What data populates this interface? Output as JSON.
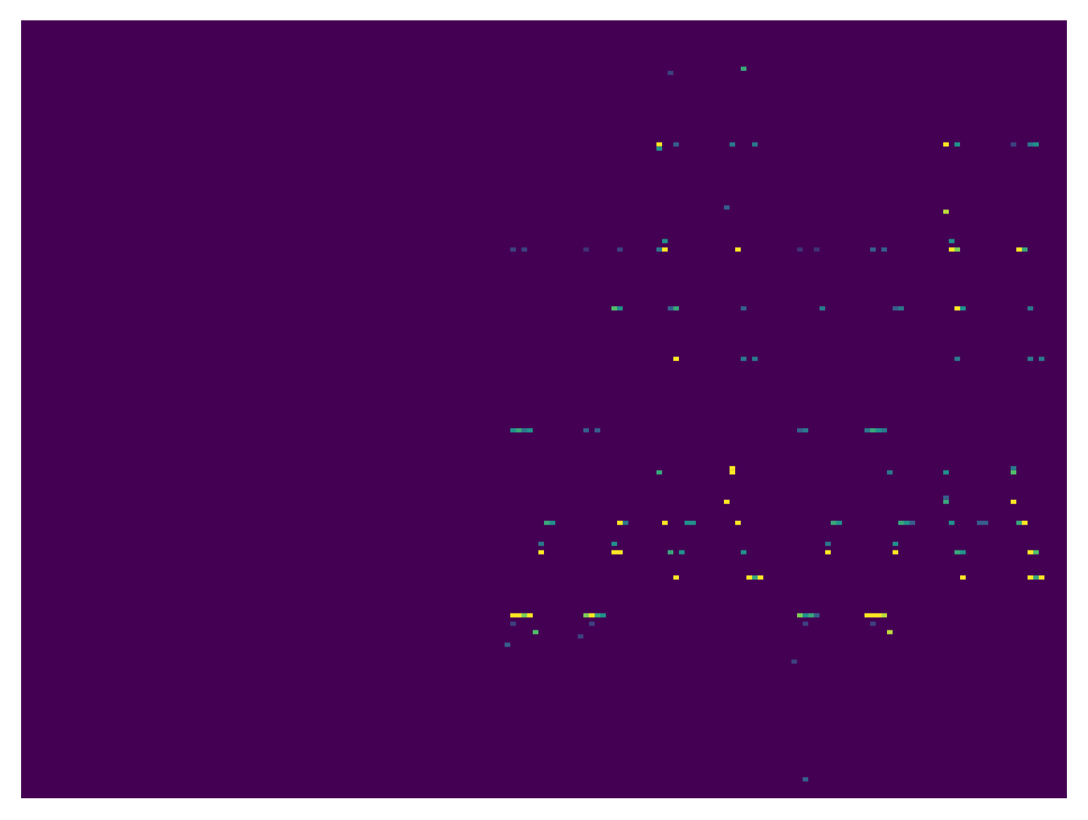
{
  "chart_data": {
    "type": "heatmap",
    "color": "viridis",
    "grid": false,
    "tick_labels": false,
    "xlim": [
      0,
      186
    ],
    "ylim": [
      0,
      185
    ],
    "color_range": [
      0,
      1
    ],
    "cells": [
      [
        87,
        43,
        1
      ],
      [
        88,
        43,
        1
      ],
      [
        89,
        43,
        0.8
      ],
      [
        90,
        43,
        1
      ],
      [
        100,
        43,
        0.8
      ],
      [
        101,
        43,
        1
      ],
      [
        102,
        43,
        0.6
      ],
      [
        103,
        43,
        0.5
      ],
      [
        138,
        43,
        0.8
      ],
      [
        139,
        43,
        0.5
      ],
      [
        140,
        43,
        0.6
      ],
      [
        141,
        43,
        0.3
      ],
      [
        150,
        43,
        1
      ],
      [
        151,
        43,
        1
      ],
      [
        152,
        43,
        1
      ],
      [
        153,
        43,
        0.9
      ],
      [
        87,
        41,
        0.2
      ],
      [
        101,
        41,
        0.2
      ],
      [
        139,
        41,
        0.2
      ],
      [
        151,
        41,
        0.2
      ],
      [
        91,
        39,
        0.7
      ],
      [
        154,
        39,
        0.9
      ],
      [
        86,
        36,
        0.3
      ],
      [
        99,
        38,
        0.2
      ],
      [
        137,
        32,
        0.2
      ],
      [
        87,
        87,
        0.5
      ],
      [
        88,
        87,
        0.6
      ],
      [
        89,
        87,
        0.4
      ],
      [
        90,
        87,
        0.5
      ],
      [
        100,
        87,
        0.3
      ],
      [
        102,
        87,
        0.3
      ],
      [
        138,
        87,
        0.3
      ],
      [
        139,
        87,
        0.4
      ],
      [
        150,
        87,
        0.4
      ],
      [
        151,
        87,
        0.6
      ],
      [
        152,
        87,
        0.5
      ],
      [
        153,
        87,
        0.4
      ],
      [
        87,
        130,
        0.2
      ],
      [
        89,
        130,
        0.2
      ],
      [
        100,
        130,
        0.15
      ],
      [
        106,
        130,
        0.2
      ],
      [
        114,
        130,
        1
      ],
      [
        113,
        130,
        0.4
      ],
      [
        127,
        130,
        1
      ],
      [
        138,
        130,
        0.15
      ],
      [
        141,
        130,
        0.15
      ],
      [
        151,
        130,
        0.3
      ],
      [
        153,
        130,
        0.3
      ],
      [
        165,
        130,
        1
      ],
      [
        166,
        130,
        0.8
      ],
      [
        177,
        130,
        1
      ],
      [
        178,
        130,
        0.6
      ],
      [
        114,
        132,
        0.5
      ],
      [
        165,
        132,
        0.5
      ],
      [
        113,
        155,
        1
      ],
      [
        113,
        154,
        0.5
      ],
      [
        116,
        155,
        0.3
      ],
      [
        126,
        155,
        0.4
      ],
      [
        130,
        155,
        0.4
      ],
      [
        164,
        155,
        1
      ],
      [
        166,
        155,
        0.5
      ],
      [
        176,
        155,
        0.2
      ],
      [
        179,
        155,
        0.4
      ],
      [
        180,
        155,
        0.5
      ],
      [
        128,
        173,
        0.6
      ],
      [
        115,
        172,
        0.2
      ],
      [
        164,
        139,
        0.9
      ],
      [
        125,
        140,
        0.3
      ],
      [
        105,
        116,
        0.7
      ],
      [
        106,
        116,
        0.5
      ],
      [
        115,
        116,
        0.3
      ],
      [
        116,
        116,
        0.6
      ],
      [
        128,
        116,
        0.3
      ],
      [
        142,
        116,
        0.4
      ],
      [
        155,
        116,
        0.3
      ],
      [
        156,
        116,
        0.4
      ],
      [
        166,
        116,
        1
      ],
      [
        167,
        116,
        0.5
      ],
      [
        179,
        116,
        0.4
      ],
      [
        116,
        104,
        1
      ],
      [
        128,
        104,
        0.4
      ],
      [
        130,
        104,
        0.4
      ],
      [
        166,
        104,
        0.4
      ],
      [
        179,
        104,
        0.4
      ],
      [
        181,
        104,
        0.4
      ],
      [
        113,
        77,
        0.6
      ],
      [
        126,
        77,
        1
      ],
      [
        126,
        78,
        1
      ],
      [
        154,
        77,
        0.4
      ],
      [
        164,
        77,
        0.5
      ],
      [
        176,
        77,
        0.7
      ],
      [
        176,
        78,
        0.4
      ],
      [
        125,
        70,
        1
      ],
      [
        176,
        70,
        1
      ],
      [
        164,
        70,
        0.6
      ],
      [
        164,
        71,
        0.3
      ],
      [
        93,
        65,
        0.6
      ],
      [
        94,
        65,
        0.5
      ],
      [
        106,
        65,
        1
      ],
      [
        107,
        65,
        0.4
      ],
      [
        114,
        65,
        1
      ],
      [
        118,
        65,
        0.5
      ],
      [
        119,
        65,
        0.5
      ],
      [
        127,
        65,
        1
      ],
      [
        144,
        65,
        0.6
      ],
      [
        145,
        65,
        0.5
      ],
      [
        156,
        65,
        0.6
      ],
      [
        157,
        65,
        0.5
      ],
      [
        158,
        65,
        0.3
      ],
      [
        165,
        65,
        0.5
      ],
      [
        170,
        65,
        0.3
      ],
      [
        171,
        65,
        0.3
      ],
      [
        178,
        65,
        1
      ],
      [
        177,
        65,
        0.6
      ],
      [
        92,
        58,
        1
      ],
      [
        92,
        60,
        0.4
      ],
      [
        105,
        58,
        1
      ],
      [
        106,
        58,
        1
      ],
      [
        105,
        60,
        0.5
      ],
      [
        115,
        58,
        0.6
      ],
      [
        117,
        58,
        0.5
      ],
      [
        128,
        58,
        0.5
      ],
      [
        143,
        58,
        1
      ],
      [
        143,
        60,
        0.4
      ],
      [
        155,
        58,
        1
      ],
      [
        155,
        60,
        0.5
      ],
      [
        166,
        58,
        0.6
      ],
      [
        167,
        58,
        0.5
      ],
      [
        179,
        58,
        1
      ],
      [
        180,
        58,
        0.7
      ],
      [
        116,
        52,
        1
      ],
      [
        129,
        52,
        1
      ],
      [
        130,
        52,
        0.6
      ],
      [
        131,
        52,
        1
      ],
      [
        167,
        52,
        1
      ],
      [
        179,
        52,
        1
      ],
      [
        180,
        52,
        0.6
      ],
      [
        181,
        52,
        1
      ],
      [
        139,
        4,
        0.3
      ]
    ]
  }
}
